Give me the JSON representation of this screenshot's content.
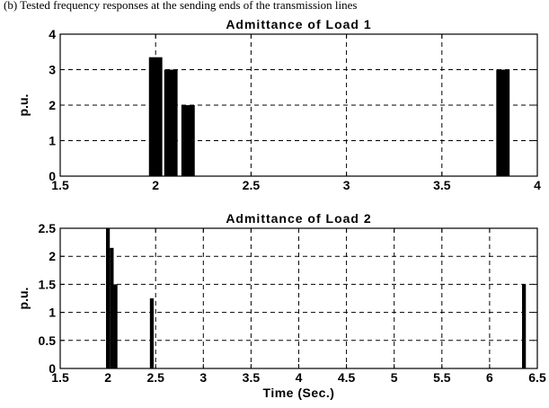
{
  "caption": "(b) Tested frequency responses at the sending ends of the transmission lines",
  "chart_data": [
    {
      "type": "bar",
      "title": "Admittance of Load 1",
      "ylabel": "p.u.",
      "xlabel": "",
      "xlim": [
        1.5,
        4
      ],
      "ylim": [
        0,
        4
      ],
      "xticks": [
        1.5,
        2,
        2.5,
        3,
        3.5,
        4
      ],
      "xtick_labels": [
        "1.5",
        "2",
        "2.5",
        "3",
        "3.5",
        "4"
      ],
      "yticks": [
        0,
        1,
        2,
        3,
        4
      ],
      "ytick_labels": [
        "0",
        "1",
        "2",
        "3",
        "4"
      ],
      "grid": true,
      "bar_color": "#000000",
      "bar_width": 0.07,
      "x": [
        2.0,
        2.08,
        2.17,
        3.82
      ],
      "values": [
        3.35,
        3.0,
        2.0,
        3.0
      ]
    },
    {
      "type": "bar",
      "title": "Admittance of Load 2",
      "ylabel": "p.u.",
      "xlabel": "Time (Sec.)",
      "xlim": [
        1.5,
        6.5
      ],
      "ylim": [
        0,
        2.5
      ],
      "xticks": [
        1.5,
        2,
        2.5,
        3,
        3.5,
        4,
        4.5,
        5,
        5.5,
        6,
        6.5
      ],
      "xtick_labels": [
        "1.5",
        "2",
        "2.5",
        "3",
        "3.5",
        "4",
        "4.5",
        "5",
        "5.5",
        "6",
        "6.5"
      ],
      "yticks": [
        0,
        0.5,
        1,
        1.5,
        2,
        2.5
      ],
      "ytick_labels": [
        "0",
        "0.5",
        "1",
        "1.5",
        "2",
        "2.5"
      ],
      "grid": true,
      "bar_color": "#000000",
      "bar_width": 0.04,
      "x": [
        2.0,
        2.04,
        2.08,
        2.46,
        6.36
      ],
      "values": [
        2.5,
        2.15,
        1.5,
        1.25,
        1.5
      ]
    }
  ]
}
